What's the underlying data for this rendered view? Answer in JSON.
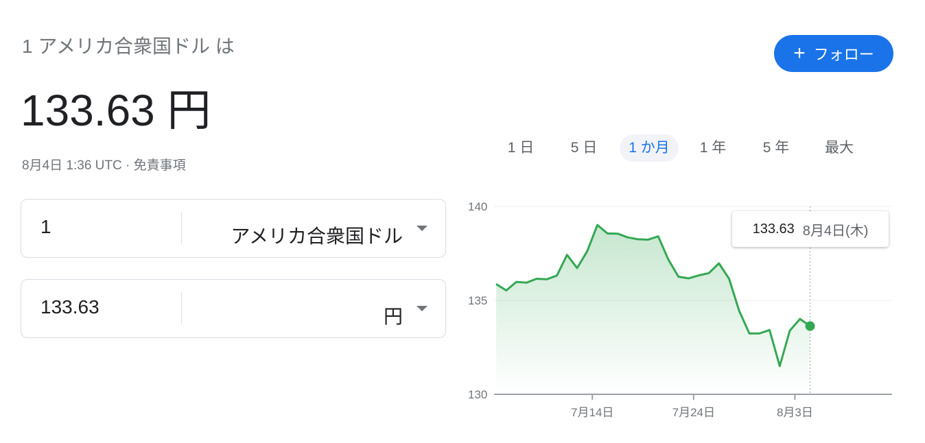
{
  "header": {
    "subtitle": "1 アメリカ合衆国ドル は",
    "rate": "133.63 円",
    "timestamp": "8月4日 1:36 UTC",
    "separator": "·",
    "disclaimer": "免責事項"
  },
  "follow_button": {
    "icon": "plus-icon",
    "label": "フォロー",
    "color": "#1a73e8"
  },
  "converter": {
    "from": {
      "amount": "1",
      "currency": "アメリカ合衆国ドル"
    },
    "to": {
      "amount": "133.63",
      "currency": "円"
    }
  },
  "range_tabs": [
    {
      "label": "1 日"
    },
    {
      "label": "5 日"
    },
    {
      "label": "1 か月",
      "active": true
    },
    {
      "label": "1 年"
    },
    {
      "label": "5 年"
    },
    {
      "label": "最大"
    }
  ],
  "tooltip": {
    "value": "133.63",
    "date": "8月4日(木)"
  },
  "chart_data": {
    "type": "area",
    "line_color": "#34a853",
    "ylim": [
      130,
      140
    ],
    "y_ticks": [
      "130",
      "135",
      "140"
    ],
    "x_ticks": [
      {
        "label": "7月14日",
        "date": "7/14"
      },
      {
        "label": "7月24日",
        "date": "7/24"
      },
      {
        "label": "8月3日",
        "date": "8/3"
      }
    ],
    "x": [
      "7/4",
      "7/5",
      "7/6",
      "7/7",
      "7/8",
      "7/9",
      "7/10",
      "7/11",
      "7/12",
      "7/13",
      "7/14",
      "7/15",
      "7/16",
      "7/17",
      "7/18",
      "7/19",
      "7/20",
      "7/21",
      "7/22",
      "7/23",
      "7/24",
      "7/25",
      "7/26",
      "7/27",
      "7/28",
      "7/29",
      "7/30",
      "7/31",
      "8/1",
      "8/2",
      "8/3",
      "8/4"
    ],
    "values": [
      135.87,
      135.53,
      135.98,
      135.94,
      136.15,
      136.12,
      136.32,
      137.42,
      136.72,
      137.62,
      139.01,
      138.56,
      138.55,
      138.35,
      138.25,
      138.23,
      138.41,
      137.18,
      136.26,
      136.17,
      136.33,
      136.45,
      136.97,
      136.15,
      134.44,
      133.24,
      133.24,
      133.42,
      131.5,
      133.39,
      134.01,
      133.63
    ],
    "grid": true
  }
}
